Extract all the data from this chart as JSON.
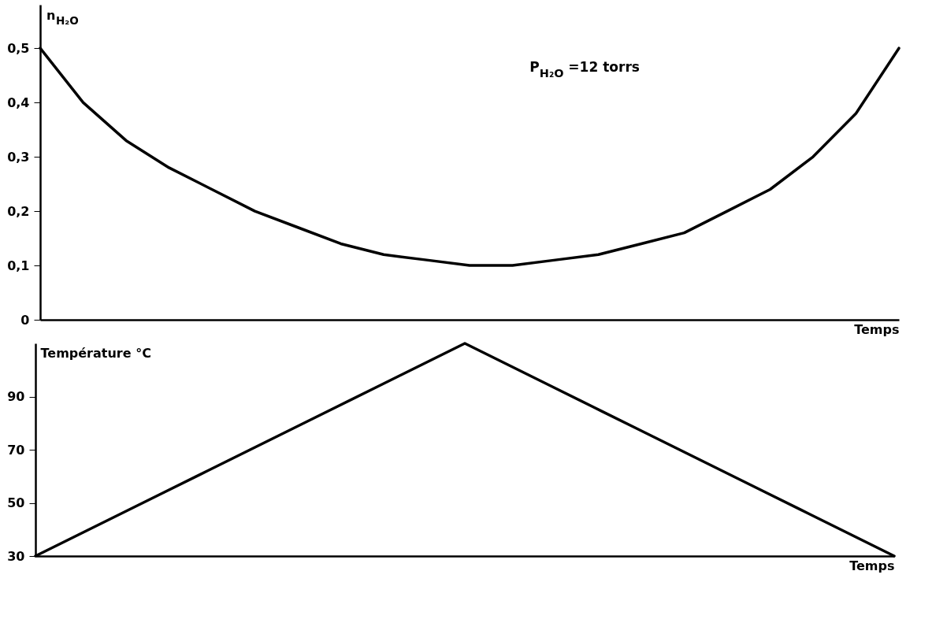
{
  "chart_data": [
    {
      "type": "line",
      "ylabel": "n$_{H₂O}$",
      "xlabel": "Temps",
      "categories": [
        null,
        null,
        null,
        null,
        null,
        null,
        null,
        null,
        null,
        null,
        null,
        null,
        null,
        null,
        null,
        null,
        null,
        null,
        null,
        null,
        null
      ],
      "series": [
        {
          "color": "#000000",
          "values": [
            0.5,
            0.4,
            0.33,
            0.28,
            0.24,
            0.2,
            0.17,
            0.14,
            0.12,
            0.11,
            0.1,
            0.1,
            0.11,
            0.12,
            0.14,
            0.16,
            0.2,
            0.24,
            0.3,
            0.38,
            0.5
          ]
        }
      ],
      "ylim": [
        0,
        0.58
      ],
      "yticks": [
        {
          "value": 0,
          "label": "0"
        },
        {
          "value": 0.1,
          "label": "0,1"
        },
        {
          "value": 0.2,
          "label": "0,2"
        },
        {
          "value": 0.3,
          "label": "0,3"
        },
        {
          "value": 0.4,
          "label": "0,4"
        },
        {
          "value": 0.5,
          "label": "0,5"
        }
      ],
      "annotations": [
        "P$_{H₂O}$ =12 torrs"
      ],
      "tick_labels": "y",
      "grid": false,
      "marker": "none"
    },
    {
      "type": "line",
      "ylabel": "Température °C",
      "xlabel": "Temps",
      "categories": [
        null,
        null,
        null,
        null,
        null,
        null,
        null,
        null,
        null,
        null,
        null,
        null,
        null,
        null,
        null,
        null,
        null,
        null,
        null,
        null,
        null
      ],
      "series": [
        {
          "color": "#000000",
          "values": [
            30,
            38,
            46,
            54,
            62,
            70,
            78,
            86,
            94,
            102,
            110,
            102,
            94,
            86,
            78,
            70,
            62,
            54,
            46,
            38,
            30
          ]
        }
      ],
      "ylim": [
        30,
        110
      ],
      "yticks": [
        30,
        50,
        70,
        90
      ],
      "tick_labels": "y",
      "grid": false,
      "marker": "none"
    }
  ]
}
